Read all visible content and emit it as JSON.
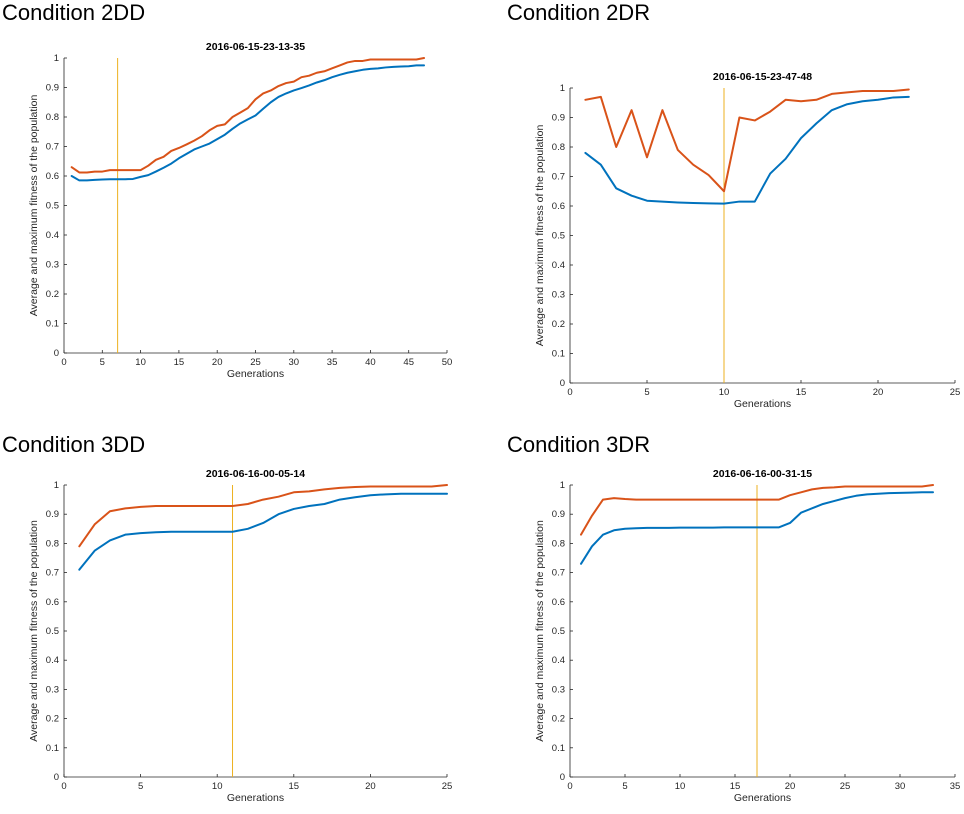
{
  "colors": {
    "average_line": "#0072BD",
    "maximum_line": "#D95319",
    "marker_line": "#EDB120",
    "axis": "#262626"
  },
  "chart_data": [
    {
      "type": "line",
      "panel_label": "Condition 2DD",
      "title": "2016-06-15-23-13-35",
      "xlabel": "Generations",
      "ylabel": "Average and maximum fitness of the population",
      "xlim": [
        0,
        50
      ],
      "ylim": [
        0,
        1
      ],
      "xticks": [
        0,
        5,
        10,
        15,
        20,
        25,
        30,
        35,
        40,
        45,
        50
      ],
      "yticks": [
        0,
        0.1,
        0.2,
        0.3,
        0.4,
        0.5,
        0.6,
        0.7,
        0.8,
        0.9,
        1
      ],
      "marker_x": 7,
      "series": [
        {
          "name": "Average fitness",
          "x": [
            1,
            2,
            3,
            4,
            5,
            6,
            7,
            8,
            9,
            10,
            11,
            12,
            13,
            14,
            15,
            16,
            17,
            18,
            19,
            20,
            21,
            22,
            23,
            24,
            25,
            26,
            27,
            28,
            29,
            30,
            31,
            32,
            33,
            34,
            35,
            36,
            37,
            38,
            39,
            40,
            41,
            42,
            43,
            44,
            45,
            46,
            47
          ],
          "values": [
            0.6,
            0.585,
            0.585,
            0.587,
            0.588,
            0.589,
            0.589,
            0.589,
            0.59,
            0.597,
            0.603,
            0.615,
            0.628,
            0.642,
            0.66,
            0.675,
            0.69,
            0.7,
            0.71,
            0.725,
            0.74,
            0.76,
            0.778,
            0.792,
            0.805,
            0.828,
            0.85,
            0.868,
            0.88,
            0.89,
            0.898,
            0.907,
            0.917,
            0.925,
            0.935,
            0.943,
            0.95,
            0.955,
            0.96,
            0.963,
            0.965,
            0.968,
            0.97,
            0.971,
            0.972,
            0.975,
            0.975
          ]
        },
        {
          "name": "Maximum fitness",
          "x": [
            1,
            2,
            3,
            4,
            5,
            6,
            7,
            8,
            9,
            10,
            11,
            12,
            13,
            14,
            15,
            16,
            17,
            18,
            19,
            20,
            21,
            22,
            23,
            24,
            25,
            26,
            27,
            28,
            29,
            30,
            31,
            32,
            33,
            34,
            35,
            36,
            37,
            38,
            39,
            40,
            41,
            42,
            43,
            44,
            45,
            46,
            47
          ],
          "values": [
            0.63,
            0.612,
            0.612,
            0.615,
            0.615,
            0.62,
            0.62,
            0.62,
            0.62,
            0.62,
            0.635,
            0.655,
            0.665,
            0.685,
            0.695,
            0.707,
            0.72,
            0.735,
            0.755,
            0.77,
            0.775,
            0.8,
            0.815,
            0.83,
            0.86,
            0.88,
            0.89,
            0.905,
            0.915,
            0.92,
            0.935,
            0.94,
            0.95,
            0.955,
            0.965,
            0.975,
            0.985,
            0.99,
            0.99,
            0.995,
            0.995,
            0.995,
            0.995,
            0.995,
            0.995,
            0.995,
            1.0
          ]
        }
      ]
    },
    {
      "type": "line",
      "panel_label": "Condition 2DR",
      "title": "2016-06-15-23-47-48",
      "xlabel": "Generations",
      "ylabel": "Average and maximum fitness of the population",
      "xlim": [
        0,
        25
      ],
      "ylim": [
        0,
        1
      ],
      "xticks": [
        0,
        5,
        10,
        15,
        20,
        25
      ],
      "yticks": [
        0,
        0.1,
        0.2,
        0.3,
        0.4,
        0.5,
        0.6,
        0.7,
        0.8,
        0.9,
        1
      ],
      "marker_x": 10,
      "series": [
        {
          "name": "Average fitness",
          "x": [
            1,
            2,
            3,
            4,
            5,
            6,
            7,
            8,
            9,
            10,
            11,
            12,
            13,
            14,
            15,
            16,
            17,
            18,
            19,
            20,
            21,
            22
          ],
          "values": [
            0.78,
            0.74,
            0.66,
            0.635,
            0.618,
            0.615,
            0.612,
            0.61,
            0.609,
            0.608,
            0.615,
            0.615,
            0.71,
            0.76,
            0.83,
            0.88,
            0.925,
            0.945,
            0.955,
            0.96,
            0.968,
            0.97
          ]
        },
        {
          "name": "Maximum fitness",
          "x": [
            1,
            2,
            3,
            4,
            5,
            6,
            7,
            8,
            9,
            10,
            11,
            12,
            13,
            14,
            15,
            16,
            17,
            18,
            19,
            20,
            21,
            22
          ],
          "values": [
            0.96,
            0.97,
            0.8,
            0.925,
            0.765,
            0.925,
            0.79,
            0.74,
            0.705,
            0.65,
            0.9,
            0.89,
            0.92,
            0.96,
            0.955,
            0.96,
            0.98,
            0.985,
            0.99,
            0.99,
            0.99,
            0.995
          ]
        }
      ]
    },
    {
      "type": "line",
      "panel_label": "Condition 3DD",
      "title": "2016-06-16-00-05-14",
      "xlabel": "Generations",
      "ylabel": "Average and maximum fitness of the population",
      "xlim": [
        0,
        25
      ],
      "ylim": [
        0,
        1
      ],
      "xticks": [
        0,
        5,
        10,
        15,
        20,
        25
      ],
      "yticks": [
        0,
        0.1,
        0.2,
        0.3,
        0.4,
        0.5,
        0.6,
        0.7,
        0.8,
        0.9,
        1
      ],
      "marker_x": 11,
      "series": [
        {
          "name": "Average fitness",
          "x": [
            1,
            2,
            3,
            4,
            5,
            6,
            7,
            8,
            9,
            10,
            11,
            12,
            13,
            14,
            15,
            16,
            17,
            18,
            19,
            20,
            21,
            22,
            23,
            24,
            25
          ],
          "values": [
            0.71,
            0.775,
            0.81,
            0.83,
            0.835,
            0.838,
            0.84,
            0.84,
            0.84,
            0.84,
            0.84,
            0.85,
            0.87,
            0.9,
            0.918,
            0.928,
            0.935,
            0.95,
            0.958,
            0.965,
            0.968,
            0.97,
            0.97,
            0.97,
            0.97
          ]
        },
        {
          "name": "Maximum fitness",
          "x": [
            1,
            2,
            3,
            4,
            5,
            6,
            7,
            8,
            9,
            10,
            11,
            12,
            13,
            14,
            15,
            16,
            17,
            18,
            19,
            20,
            21,
            22,
            23,
            24,
            25
          ],
          "values": [
            0.79,
            0.865,
            0.91,
            0.92,
            0.925,
            0.928,
            0.928,
            0.928,
            0.928,
            0.928,
            0.928,
            0.935,
            0.95,
            0.96,
            0.975,
            0.978,
            0.985,
            0.99,
            0.993,
            0.995,
            0.995,
            0.995,
            0.995,
            0.995,
            1.0
          ]
        }
      ]
    },
    {
      "type": "line",
      "panel_label": "Condition 3DR",
      "title": "2016-06-16-00-31-15",
      "xlabel": "Generations",
      "ylabel": "Average and maximum fitness of the population",
      "xlim": [
        0,
        35
      ],
      "ylim": [
        0,
        1
      ],
      "xticks": [
        0,
        5,
        10,
        15,
        20,
        25,
        30,
        35
      ],
      "yticks": [
        0,
        0.1,
        0.2,
        0.3,
        0.4,
        0.5,
        0.6,
        0.7,
        0.8,
        0.9,
        1
      ],
      "marker_x": 17,
      "series": [
        {
          "name": "Average fitness",
          "x": [
            1,
            2,
            3,
            4,
            5,
            6,
            7,
            8,
            9,
            10,
            11,
            12,
            13,
            14,
            15,
            16,
            17,
            18,
            19,
            20,
            21,
            22,
            23,
            24,
            25,
            26,
            27,
            28,
            29,
            30,
            31,
            32,
            33
          ],
          "values": [
            0.73,
            0.79,
            0.83,
            0.845,
            0.85,
            0.852,
            0.853,
            0.853,
            0.853,
            0.854,
            0.854,
            0.854,
            0.854,
            0.855,
            0.855,
            0.855,
            0.855,
            0.855,
            0.855,
            0.87,
            0.905,
            0.92,
            0.935,
            0.945,
            0.955,
            0.963,
            0.968,
            0.97,
            0.972,
            0.973,
            0.974,
            0.975,
            0.975
          ]
        },
        {
          "name": "Maximum fitness",
          "x": [
            1,
            2,
            3,
            4,
            5,
            6,
            7,
            8,
            9,
            10,
            11,
            12,
            13,
            14,
            15,
            16,
            17,
            18,
            19,
            20,
            21,
            22,
            23,
            24,
            25,
            26,
            27,
            28,
            29,
            30,
            31,
            32,
            33
          ],
          "values": [
            0.83,
            0.895,
            0.95,
            0.955,
            0.952,
            0.95,
            0.95,
            0.95,
            0.95,
            0.95,
            0.95,
            0.95,
            0.95,
            0.95,
            0.95,
            0.95,
            0.95,
            0.95,
            0.95,
            0.965,
            0.975,
            0.985,
            0.99,
            0.992,
            0.995,
            0.995,
            0.995,
            0.995,
            0.995,
            0.995,
            0.995,
            0.995,
            1.0
          ]
        }
      ]
    }
  ]
}
